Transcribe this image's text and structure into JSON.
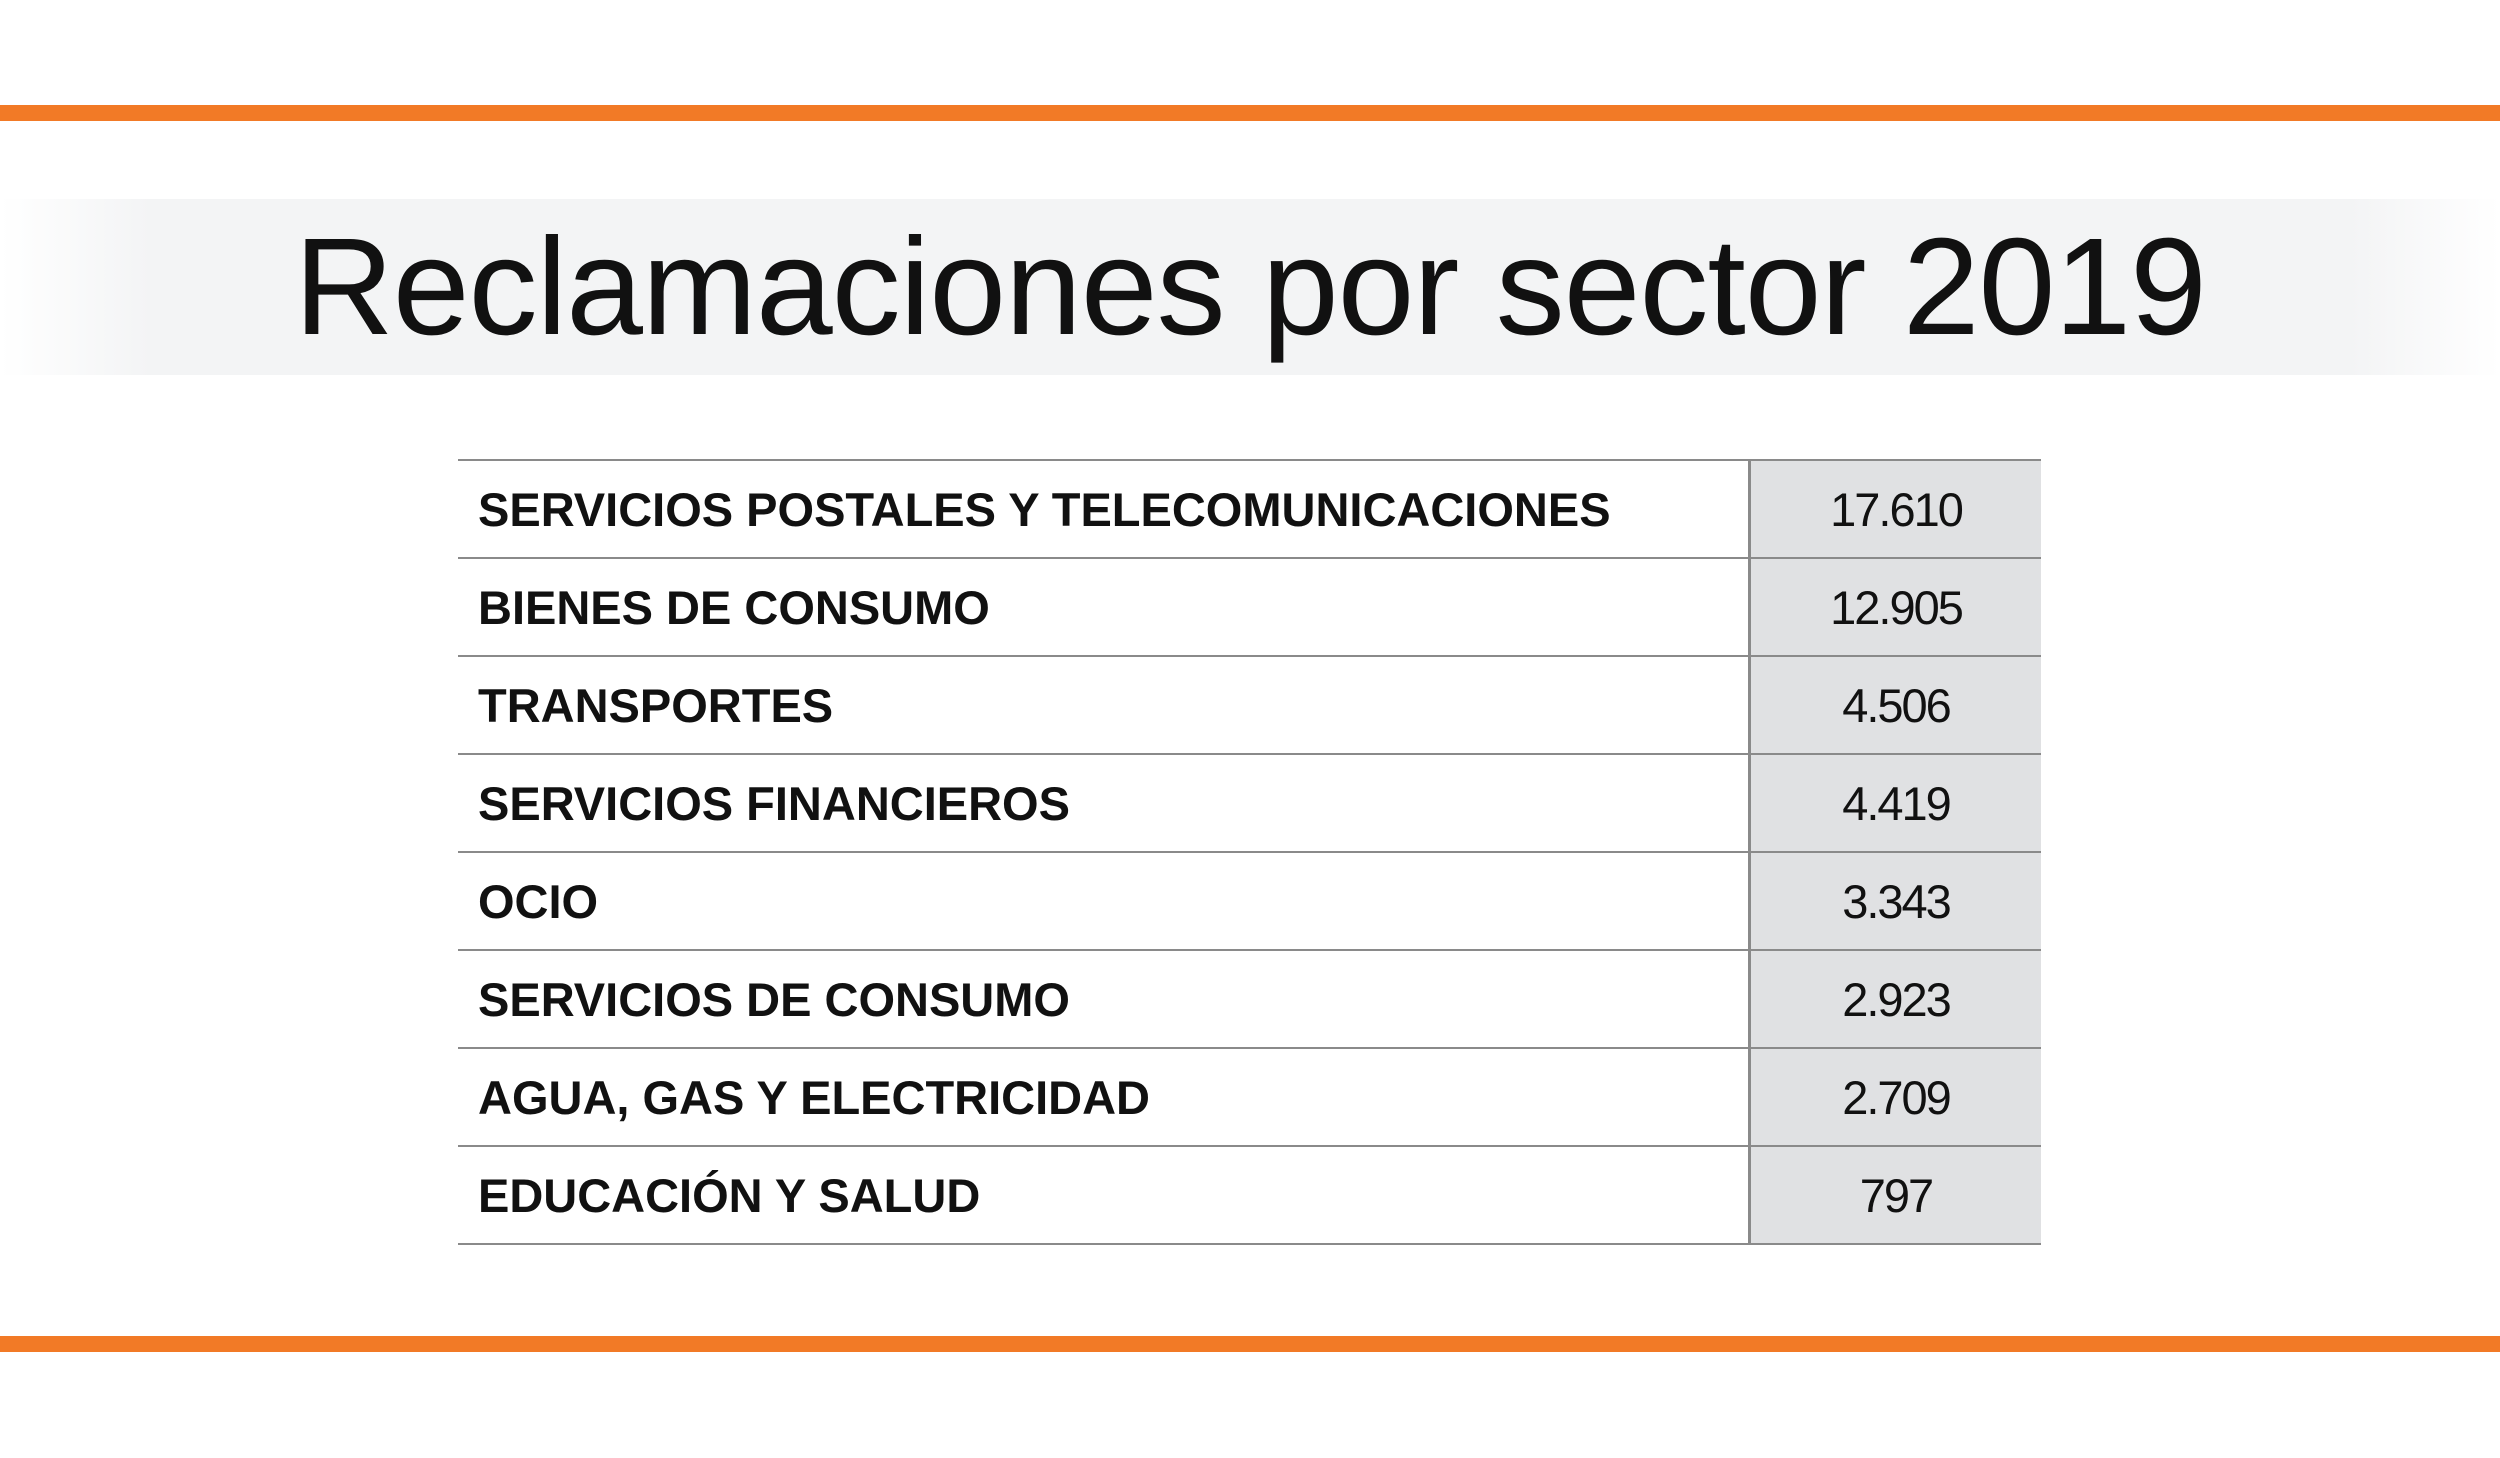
{
  "title": "Reclamaciones por sector 2019",
  "table": {
    "rows": [
      [
        "SERVICIOS POSTALES Y TELECOMUNICACIONES",
        "17.610"
      ],
      [
        "BIENES DE CONSUMO",
        "12.905"
      ],
      [
        "TRANSPORTES",
        "4.506"
      ],
      [
        "SERVICIOS FINANCIEROS",
        "4.419"
      ],
      [
        "OCIO",
        "3.343"
      ],
      [
        "SERVICIOS DE CONSUMO",
        "2.923"
      ],
      [
        "AGUA, GAS Y ELECTRICIDAD",
        "2.709"
      ],
      [
        "EDUCACIÓN Y SALUD",
        "797"
      ]
    ]
  }
}
